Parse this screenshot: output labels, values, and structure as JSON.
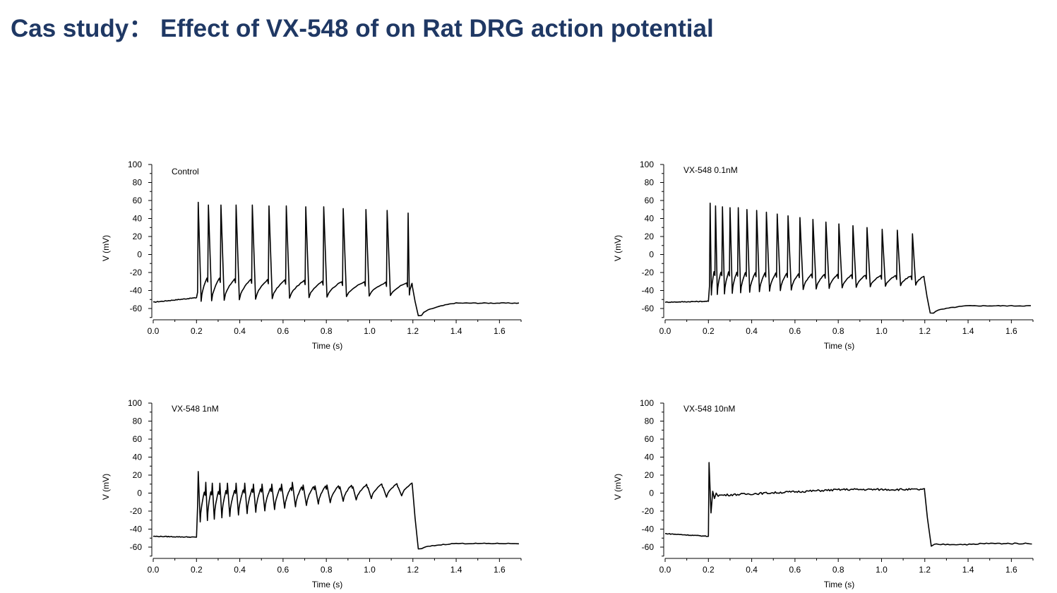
{
  "page": {
    "title": "Cas study：  Effect of VX-548 of on Rat DRG action potential"
  },
  "chart_data": [
    {
      "type": "line",
      "label": "Control",
      "xlabel": "Time (s)",
      "ylabel": "V (mV)",
      "xlim": [
        0,
        1.7
      ],
      "ylim": [
        -70,
        100
      ],
      "xticks": [
        "0.0",
        "0.2",
        "0.4",
        "0.6",
        "0.8",
        "1.0",
        "1.2",
        "1.4",
        "1.6"
      ],
      "yticks": [
        "-60",
        "-40",
        "-20",
        "0",
        "20",
        "40",
        "60",
        "80",
        "100"
      ],
      "trace": {
        "stim_on": 0.2,
        "stim_off": 1.2,
        "baseline_start": -53,
        "baseline_pre": -48,
        "plateau_start": -32,
        "plateau_end": -38,
        "post_min": -68,
        "post_end": -54,
        "spike_times": [
          0.205,
          0.252,
          0.31,
          0.38,
          0.455,
          0.532,
          0.612,
          0.702,
          0.785,
          0.875,
          0.98,
          1.078,
          1.175
        ],
        "spike_peaks": [
          58,
          55,
          55,
          55,
          55,
          54,
          54,
          53,
          53,
          51,
          50,
          49,
          46
        ],
        "trough": -52,
        "trough_end": -45
      }
    },
    {
      "type": "line",
      "label": "VX-548 0.1nM",
      "xlabel": "Time (s)",
      "ylabel": "V (mV)",
      "xlim": [
        0,
        1.7
      ],
      "ylim": [
        -70,
        100
      ],
      "xticks": [
        "0.0",
        "0.2",
        "0.4",
        "0.6",
        "0.8",
        "1.0",
        "1.2",
        "1.4",
        "1.6"
      ],
      "yticks": [
        "-60",
        "-40",
        "-20",
        "0",
        "20",
        "40",
        "60",
        "80",
        "100"
      ],
      "trace": {
        "stim_on": 0.2,
        "stim_off": 1.2,
        "baseline_start": -53,
        "baseline_pre": -52,
        "plateau_start": -25,
        "plateau_end": -30,
        "post_min": -65,
        "post_end": -57,
        "spike_times": [
          0.205,
          0.23,
          0.262,
          0.297,
          0.335,
          0.375,
          0.42,
          0.465,
          0.515,
          0.565,
          0.62,
          0.68,
          0.74,
          0.8,
          0.865,
          0.93,
          1.0,
          1.07,
          1.14
        ],
        "spike_peaks": [
          57,
          54,
          53,
          52,
          52,
          50,
          49,
          47,
          45,
          43,
          41,
          39,
          36,
          34,
          32,
          30,
          28,
          27,
          23
        ],
        "trough": -45,
        "trough_end": -34
      }
    },
    {
      "type": "line",
      "label": "VX-548 1nM",
      "xlabel": "Time (s)",
      "ylabel": "V (mV)",
      "xlim": [
        0,
        1.7
      ],
      "ylim": [
        -70,
        100
      ],
      "xticks": [
        "0.0",
        "0.2",
        "0.4",
        "0.6",
        "0.8",
        "1.0",
        "1.2",
        "1.4",
        "1.6"
      ],
      "yticks": [
        "-60",
        "-40",
        "-20",
        "0",
        "20",
        "40",
        "60",
        "80",
        "100"
      ],
      "trace": {
        "stim_on": 0.2,
        "stim_off": 1.2,
        "baseline_start": -48,
        "baseline_pre": -49,
        "plateau_start": -5,
        "plateau_end": 5,
        "post_min": -62,
        "post_end": -56,
        "spike_times": [
          0.205,
          0.24,
          0.27,
          0.305,
          0.34,
          0.38,
          0.42,
          0.46,
          0.5,
          0.545,
          0.59,
          0.64,
          0.69,
          0.745,
          0.8,
          0.86,
          0.92,
          0.99,
          1.06,
          1.13
        ],
        "spike_peaks": [
          24,
          12,
          11,
          11,
          11,
          11,
          11,
          10,
          10,
          10,
          10,
          12,
          9,
          8,
          9,
          7,
          7,
          6,
          6,
          6
        ],
        "trough": -32,
        "trough_end": -3
      }
    },
    {
      "type": "line",
      "label": "VX-548 10nM",
      "xlabel": "Time (s)",
      "ylabel": "V (mV)",
      "xlim": [
        0,
        1.7
      ],
      "ylim": [
        -70,
        100
      ],
      "xticks": [
        "0.0",
        "0.2",
        "0.4",
        "0.6",
        "0.8",
        "1.0",
        "1.2",
        "1.4",
        "1.6"
      ],
      "yticks": [
        "-60",
        "-40",
        "-20",
        "0",
        "20",
        "40",
        "60",
        "80",
        "100"
      ],
      "trace": {
        "stim_on": 0.2,
        "stim_off": 1.2,
        "baseline_start": -45,
        "baseline_pre": -48,
        "plateau_start": -3,
        "plateau_end": 4,
        "post_min": -59,
        "post_end": -56,
        "spike_times": [
          0.205
        ],
        "spike_peaks": [
          34
        ],
        "trough": -22,
        "trough_end": -3
      }
    }
  ]
}
